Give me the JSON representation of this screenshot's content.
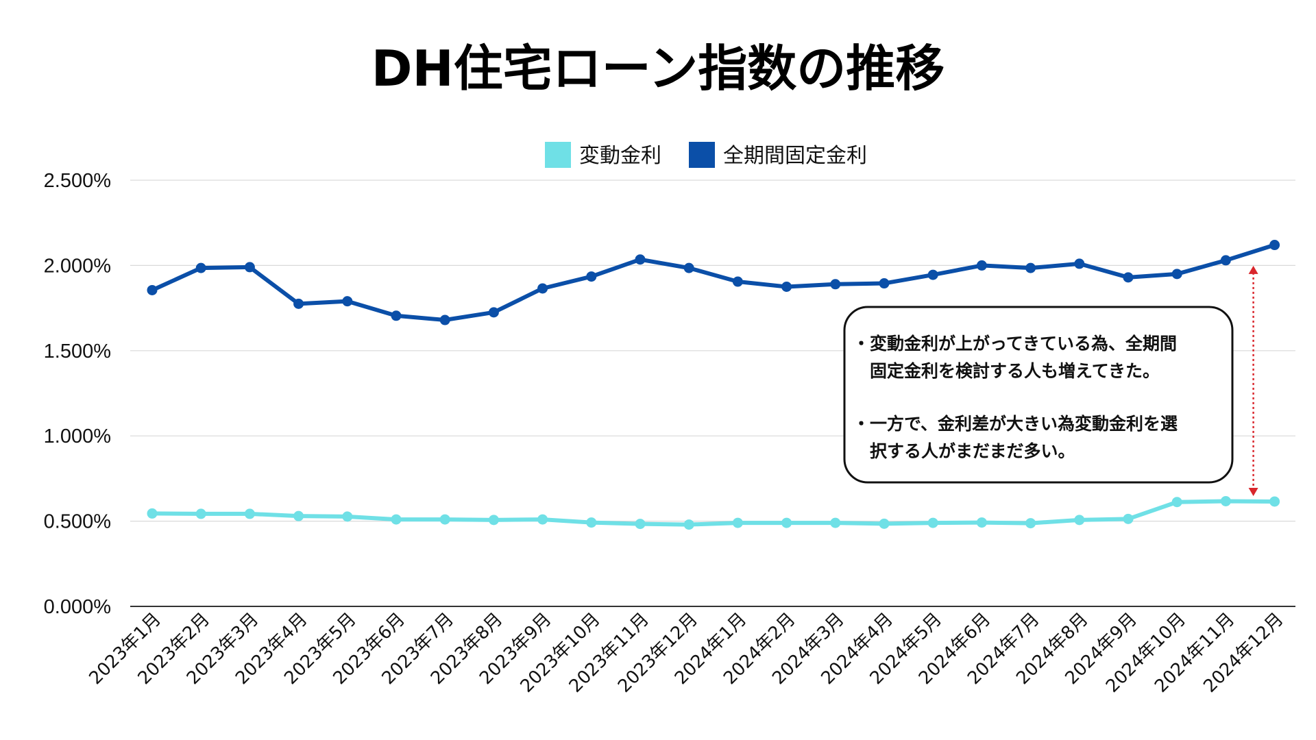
{
  "chart_data": {
    "type": "line",
    "title": "DH住宅ローン指数の推移",
    "xlabel": "",
    "ylabel": "",
    "ylim": [
      0,
      2.5
    ],
    "yticks": [
      "0.000%",
      "0.500%",
      "1.000%",
      "1.500%",
      "2.000%",
      "2.500%"
    ],
    "ytick_values": [
      0,
      0.5,
      1.0,
      1.5,
      2.0,
      2.5
    ],
    "grid": true,
    "legend_position": "top-center",
    "categories": [
      "2023年1月",
      "2023年2月",
      "2023年3月",
      "2023年4月",
      "2023年5月",
      "2023年6月",
      "2023年7月",
      "2023年8月",
      "2023年9月",
      "2023年10月",
      "2023年11月",
      "2023年12月",
      "2024年1月",
      "2024年2月",
      "2024年3月",
      "2024年4月",
      "2024年5月",
      "2024年6月",
      "2024年7月",
      "2024年8月",
      "2024年9月",
      "2024年10月",
      "2024年11月",
      "2024年12月"
    ],
    "series": [
      {
        "name": "変動金利",
        "color": "#6fe0e6",
        "values": [
          0.545,
          0.543,
          0.543,
          0.53,
          0.527,
          0.51,
          0.51,
          0.507,
          0.51,
          0.492,
          0.484,
          0.48,
          0.49,
          0.49,
          0.49,
          0.485,
          0.49,
          0.492,
          0.488,
          0.507,
          0.513,
          0.612,
          0.617,
          0.615
        ]
      },
      {
        "name": "全期間固定金利",
        "color": "#0b4fa8",
        "values": [
          1.855,
          1.985,
          1.99,
          1.775,
          1.79,
          1.705,
          1.68,
          1.725,
          1.865,
          1.935,
          2.035,
          1.985,
          1.905,
          1.875,
          1.89,
          1.895,
          1.945,
          2.0,
          1.985,
          2.01,
          1.93,
          1.95,
          2.03,
          2.12
        ]
      }
    ],
    "annotation": {
      "lines": [
        "・変動金利が上がってきている為、全期間",
        "　固定金利を検討する人も増えてきた。",
        "・一方で、金利差が大きい為変動金利を選",
        "　択する人がまだまだ多い。"
      ],
      "arrow_category": "2024年12月",
      "arrow_from": 2.03,
      "arrow_to": 0.615,
      "arrow_color": "#d9262c"
    }
  }
}
